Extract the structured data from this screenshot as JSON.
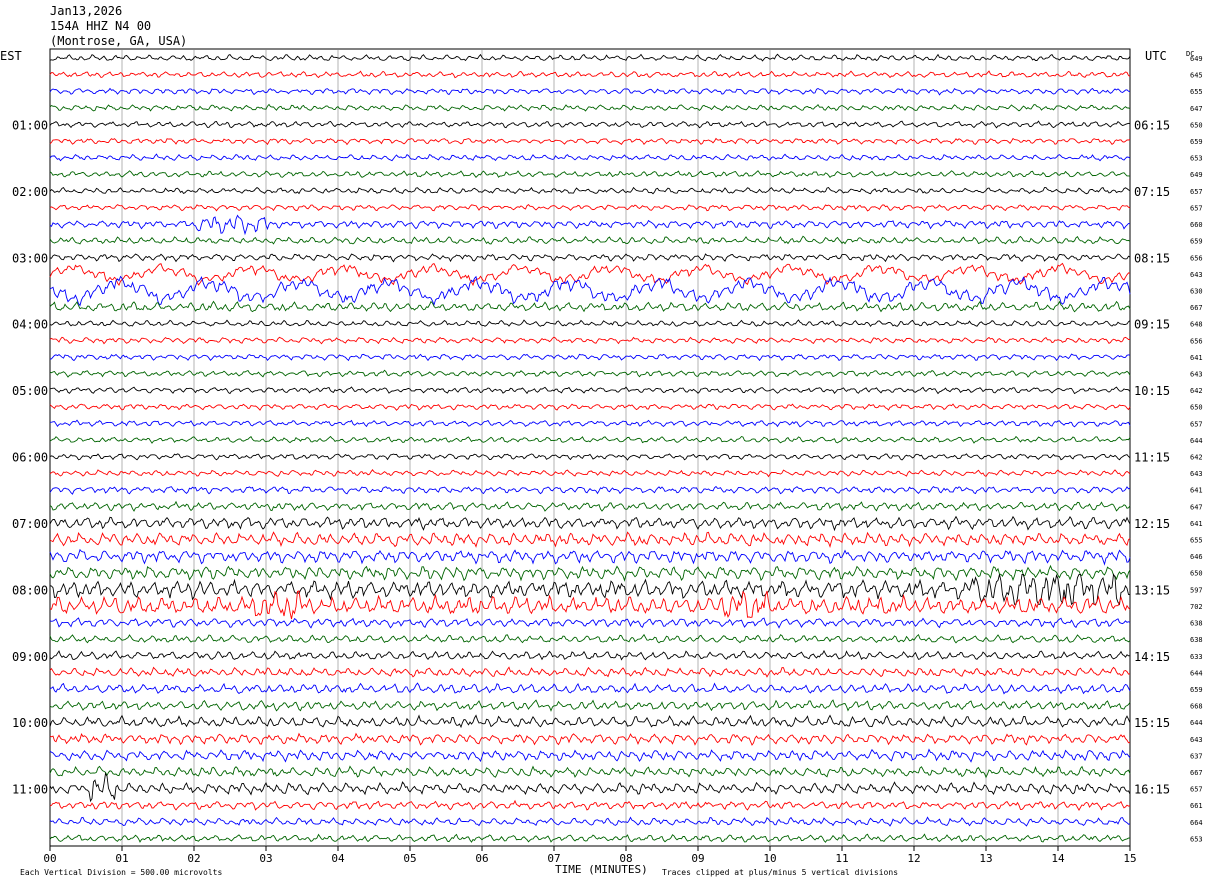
{
  "header": {
    "date": "Jan13,2026",
    "station": "154A HHZ N4 00",
    "location": "(Montrose, GA, USA)"
  },
  "left_tz": "EST",
  "right_tz": "UTC",
  "dc_label": "DC",
  "xlabel": "TIME (MINUTES)",
  "footer_left": "Each Vertical Division =  500.00 microvolts",
  "footer_right": "Traces clipped at plus/minus 5 vertical divisions",
  "colors": {
    "cycle": [
      "#000000",
      "#ff0000",
      "#0000ff",
      "#006400"
    ],
    "grid": "#808080"
  },
  "chart_data": {
    "type": "line",
    "xlim": [
      0,
      15
    ],
    "x_ticks": [
      "00",
      "01",
      "02",
      "03",
      "04",
      "05",
      "06",
      "07",
      "08",
      "09",
      "10",
      "11",
      "12",
      "13",
      "14",
      "15"
    ],
    "left_hour_labels": [
      "01:00",
      "02:00",
      "03:00",
      "04:00",
      "05:00",
      "06:00",
      "07:00",
      "08:00",
      "09:00",
      "10:00",
      "11:00"
    ],
    "right_hour_labels": [
      "06:15",
      "07:15",
      "08:15",
      "09:15",
      "10:15",
      "11:15",
      "12:15",
      "13:15",
      "14:15",
      "15:15",
      "16:15"
    ],
    "trace_count": 48,
    "dc_offsets": [
      649,
      645,
      655,
      647,
      650,
      659,
      653,
      649,
      657,
      657,
      660,
      659,
      656,
      643,
      630,
      667,
      648,
      656,
      641,
      643,
      642,
      650,
      657,
      644,
      642,
      643,
      641,
      647,
      641,
      655,
      646,
      650,
      597,
      702,
      638,
      638,
      633,
      644,
      659,
      668,
      644,
      643,
      637,
      667,
      657,
      661,
      664,
      653
    ],
    "activity": [
      1,
      1,
      1,
      1,
      1,
      1,
      1,
      1,
      1,
      1,
      1.3,
      1.2,
      1.2,
      1.8,
      2.4,
      1.6,
      1,
      1,
      1,
      1,
      1,
      1,
      1,
      1,
      1,
      1,
      1.2,
      1.4,
      2,
      2.2,
      2.2,
      2.2,
      3,
      3,
      1.5,
      1.3,
      1.4,
      1.5,
      1.6,
      1.6,
      1.8,
      1.7,
      1.8,
      1.7,
      1.9,
      1.4,
      1.3,
      1.2
    ]
  }
}
